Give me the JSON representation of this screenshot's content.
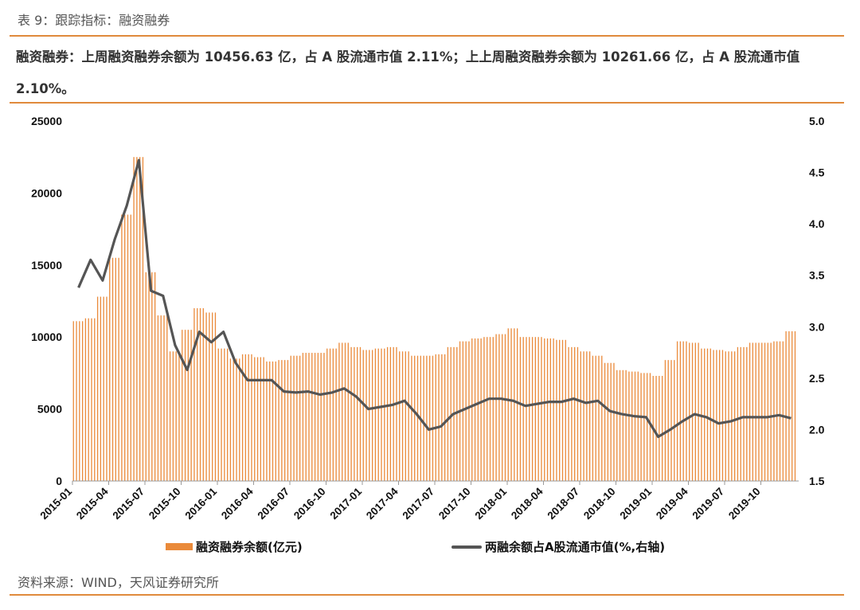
{
  "header": {
    "table_title": "表 9：跟踪指标：融资融券",
    "summary": "融资融券：上周融资融券余额为 10456.63 亿，占 A 股流通市值 2.11%；上上周融资融券余额为 10261.66 亿，占 A 股流通市值 2.10%。"
  },
  "legend": {
    "bar_label": "融资融券余额(亿元)",
    "line_label": "两融余额占A股流通市值(%,右轴)"
  },
  "source": "资料来源：WIND，天风证券研究所",
  "colors": {
    "bar": "#ea8a3a",
    "line": "#555555",
    "accent_rule": "#e08a3c"
  },
  "chart_data": {
    "type": "bar+line",
    "title": "",
    "x_axis": {
      "start": "2015-01",
      "end": "2019-12",
      "tick_labels": [
        "2015-01",
        "2015-04",
        "2015-07",
        "2015-10",
        "2016-01",
        "2016-04",
        "2016-07",
        "2016-10",
        "2017-01",
        "2017-04",
        "2017-07",
        "2017-10",
        "2018-01",
        "2018-04",
        "2018-07",
        "2018-10",
        "2019-01",
        "2019-04",
        "2019-07",
        "2019-10"
      ]
    },
    "y_left": {
      "min": 0,
      "max": 25000,
      "tick_labels": [
        "0",
        "5000",
        "10000",
        "15000",
        "20000",
        "25000"
      ]
    },
    "y_right": {
      "min": 1.5,
      "max": 5.0,
      "tick_labels": [
        "1.5",
        "2.0",
        "2.5",
        "3.0",
        "3.5",
        "4.0",
        "4.5",
        "5.0"
      ]
    },
    "series": [
      {
        "name": "融资融券余额(亿元)",
        "type": "bar",
        "axis": "left",
        "points": [
          [
            "2015-01",
            11100
          ],
          [
            "2015-02",
            11300
          ],
          [
            "2015-03",
            12800
          ],
          [
            "2015-04",
            15500
          ],
          [
            "2015-05",
            18500
          ],
          [
            "2015-06",
            22500
          ],
          [
            "2015-07",
            14500
          ],
          [
            "2015-08",
            11500
          ],
          [
            "2015-09",
            9000
          ],
          [
            "2015-10",
            10500
          ],
          [
            "2015-11",
            12000
          ],
          [
            "2015-12",
            11700
          ],
          [
            "2016-01",
            9200
          ],
          [
            "2016-02",
            8500
          ],
          [
            "2016-03",
            8800
          ],
          [
            "2016-04",
            8600
          ],
          [
            "2016-05",
            8300
          ],
          [
            "2016-06",
            8400
          ],
          [
            "2016-07",
            8700
          ],
          [
            "2016-08",
            8900
          ],
          [
            "2016-09",
            8900
          ],
          [
            "2016-10",
            9200
          ],
          [
            "2016-11",
            9600
          ],
          [
            "2016-12",
            9300
          ],
          [
            "2017-01",
            9100
          ],
          [
            "2017-02",
            9200
          ],
          [
            "2017-03",
            9300
          ],
          [
            "2017-04",
            9000
          ],
          [
            "2017-05",
            8700
          ],
          [
            "2017-06",
            8700
          ],
          [
            "2017-07",
            8800
          ],
          [
            "2017-08",
            9300
          ],
          [
            "2017-09",
            9700
          ],
          [
            "2017-10",
            9900
          ],
          [
            "2017-11",
            10000
          ],
          [
            "2017-12",
            10200
          ],
          [
            "2018-01",
            10600
          ],
          [
            "2018-02",
            10000
          ],
          [
            "2018-03",
            10000
          ],
          [
            "2018-04",
            9900
          ],
          [
            "2018-05",
            9800
          ],
          [
            "2018-06",
            9300
          ],
          [
            "2018-07",
            9000
          ],
          [
            "2018-08",
            8700
          ],
          [
            "2018-09",
            8200
          ],
          [
            "2018-10",
            7700
          ],
          [
            "2018-11",
            7600
          ],
          [
            "2018-12",
            7500
          ],
          [
            "2019-01",
            7300
          ],
          [
            "2019-02",
            8400
          ],
          [
            "2019-03",
            9700
          ],
          [
            "2019-04",
            9600
          ],
          [
            "2019-05",
            9200
          ],
          [
            "2019-06",
            9100
          ],
          [
            "2019-07",
            9000
          ],
          [
            "2019-08",
            9300
          ],
          [
            "2019-09",
            9600
          ],
          [
            "2019-10",
            9600
          ],
          [
            "2019-11",
            9700
          ],
          [
            "2019-12",
            10400
          ]
        ]
      },
      {
        "name": "两融余额占A股流通市值(%,右轴)",
        "type": "line",
        "axis": "right",
        "points": [
          [
            "2015-01",
            3.38
          ],
          [
            "2015-02",
            3.65
          ],
          [
            "2015-03",
            3.45
          ],
          [
            "2015-04",
            3.85
          ],
          [
            "2015-05",
            4.18
          ],
          [
            "2015-06",
            4.62
          ],
          [
            "2015-07",
            3.35
          ],
          [
            "2015-08",
            3.3
          ],
          [
            "2015-09",
            2.82
          ],
          [
            "2015-10",
            2.58
          ],
          [
            "2015-11",
            2.95
          ],
          [
            "2015-12",
            2.85
          ],
          [
            "2016-01",
            2.95
          ],
          [
            "2016-02",
            2.65
          ],
          [
            "2016-03",
            2.48
          ],
          [
            "2016-04",
            2.48
          ],
          [
            "2016-05",
            2.48
          ],
          [
            "2016-06",
            2.37
          ],
          [
            "2016-07",
            2.36
          ],
          [
            "2016-08",
            2.37
          ],
          [
            "2016-09",
            2.34
          ],
          [
            "2016-10",
            2.36
          ],
          [
            "2016-11",
            2.4
          ],
          [
            "2016-12",
            2.32
          ],
          [
            "2017-01",
            2.2
          ],
          [
            "2017-02",
            2.22
          ],
          [
            "2017-03",
            2.24
          ],
          [
            "2017-04",
            2.28
          ],
          [
            "2017-05",
            2.15
          ],
          [
            "2017-06",
            2.0
          ],
          [
            "2017-07",
            2.03
          ],
          [
            "2017-08",
            2.15
          ],
          [
            "2017-09",
            2.2
          ],
          [
            "2017-10",
            2.25
          ],
          [
            "2017-11",
            2.3
          ],
          [
            "2017-12",
            2.3
          ],
          [
            "2018-01",
            2.28
          ],
          [
            "2018-02",
            2.23
          ],
          [
            "2018-03",
            2.25
          ],
          [
            "2018-04",
            2.27
          ],
          [
            "2018-05",
            2.27
          ],
          [
            "2018-06",
            2.3
          ],
          [
            "2018-07",
            2.26
          ],
          [
            "2018-08",
            2.28
          ],
          [
            "2018-09",
            2.18
          ],
          [
            "2018-10",
            2.15
          ],
          [
            "2018-11",
            2.13
          ],
          [
            "2018-12",
            2.12
          ],
          [
            "2019-01",
            1.93
          ],
          [
            "2019-02",
            2.0
          ],
          [
            "2019-03",
            2.08
          ],
          [
            "2019-04",
            2.15
          ],
          [
            "2019-05",
            2.12
          ],
          [
            "2019-06",
            2.06
          ],
          [
            "2019-07",
            2.08
          ],
          [
            "2019-08",
            2.12
          ],
          [
            "2019-09",
            2.12
          ],
          [
            "2019-10",
            2.12
          ],
          [
            "2019-11",
            2.14
          ],
          [
            "2019-12",
            2.11
          ]
        ]
      }
    ],
    "legend_position": "bottom",
    "grid": false
  }
}
